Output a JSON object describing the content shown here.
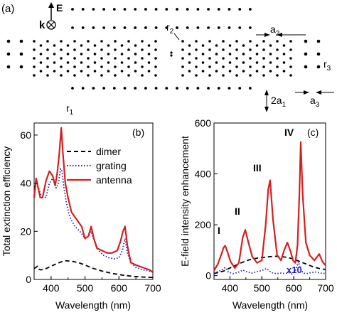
{
  "panel_a": {
    "label": "(a)",
    "E": "E",
    "k": "k",
    "r1": "r",
    "r1_sub": "1",
    "r2": "r",
    "r2_sub": "2",
    "r3": "r",
    "r3_sub": "3",
    "a2": "a",
    "a2_sub": "2",
    "a3": "a",
    "a3_sub": "3",
    "two_a1": "2a",
    "two_a1_sub": "1"
  },
  "colors": {
    "dimer": "#000000",
    "grating": "#1f1fb4",
    "antenna": "#d42020",
    "x10": "#1f1fb4"
  },
  "chart_data": [
    {
      "type": "line",
      "panel_label": "(b)",
      "xlabel": "Wavelength (nm)",
      "ylabel": "Total extinction efficiency",
      "xlim": [
        350,
        700
      ],
      "ylim": [
        0,
        65
      ],
      "xticks": [
        "400",
        "500",
        "600",
        "700"
      ],
      "yticks": [
        "0",
        "20",
        "40",
        "60"
      ],
      "legend": [
        "dimer",
        "grating",
        "antenna"
      ],
      "series": [
        {
          "name": "dimer",
          "x": [
            350,
            360,
            365,
            370,
            380,
            400,
            420,
            440,
            460,
            480,
            500,
            520,
            550,
            580,
            610,
            640,
            670,
            700
          ],
          "y": [
            4.5,
            5.5,
            4.2,
            4.0,
            4.2,
            5.5,
            6.8,
            7.8,
            7.6,
            7.0,
            6.0,
            4.8,
            3.5,
            2.5,
            1.8,
            1.3,
            1.0,
            0.8
          ]
        },
        {
          "name": "grating",
          "x": [
            350,
            355,
            362,
            370,
            385,
            395,
            405,
            415,
            422,
            428,
            432,
            438,
            445,
            455,
            470,
            485,
            500,
            510,
            518,
            525,
            540,
            555,
            570,
            585,
            600,
            610,
            618,
            625,
            635,
            650,
            670,
            690,
            700
          ],
          "y": [
            35,
            39,
            38.5,
            35,
            34,
            40,
            42,
            38,
            40,
            46,
            45,
            38,
            32,
            26,
            22,
            20,
            17,
            18,
            20,
            17,
            12,
            10,
            9,
            8.5,
            9,
            12,
            17,
            11,
            7,
            5,
            4,
            3.5,
            3
          ]
        },
        {
          "name": "antenna",
          "x": [
            350,
            356,
            362,
            368,
            375,
            385,
            395,
            405,
            412,
            418,
            424,
            430,
            435,
            442,
            450,
            460,
            475,
            490,
            500,
            510,
            518,
            526,
            535,
            550,
            565,
            580,
            595,
            605,
            612,
            618,
            625,
            635,
            650,
            670,
            690,
            700
          ],
          "y": [
            34,
            42,
            38,
            34,
            34,
            41,
            45,
            43,
            39,
            44,
            52,
            63,
            52,
            40,
            34,
            28,
            25,
            22,
            17,
            18,
            22,
            17,
            13,
            12,
            11,
            11,
            12,
            16,
            20,
            22,
            14,
            7,
            6,
            5,
            4,
            3
          ]
        }
      ]
    },
    {
      "type": "line",
      "panel_label": "(c)",
      "xlabel": "Wavelength (nm)",
      "ylabel": "E-field intensity enhancement",
      "xlim": [
        350,
        700
      ],
      "ylim": [
        -15,
        600
      ],
      "xticks": [
        "400",
        "500",
        "600",
        "700"
      ],
      "yticks": [
        "0",
        "200",
        "400",
        "600"
      ],
      "annotations": [
        "I",
        "II",
        "III",
        "IV",
        "x10"
      ],
      "series": [
        {
          "name": "dimer",
          "x": [
            350,
            380,
            400,
            430,
            460,
            490,
            520,
            540,
            560,
            580,
            600,
            620,
            640,
            660,
            680,
            700
          ],
          "y": [
            8,
            18,
            30,
            48,
            62,
            70,
            74,
            76,
            75,
            72,
            65,
            55,
            45,
            35,
            28,
            24
          ]
        },
        {
          "name": "grating",
          "x": [
            350,
            370,
            385,
            395,
            410,
            425,
            440,
            455,
            470,
            485,
            500,
            515,
            530,
            545,
            560,
            575,
            585,
            595,
            605,
            615,
            620,
            630,
            640,
            655,
            670,
            685,
            700
          ],
          "y": [
            10,
            20,
            32,
            14,
            8,
            12,
            22,
            14,
            10,
            16,
            20,
            28,
            12,
            8,
            10,
            8,
            12,
            6,
            20,
            55,
            30,
            10,
            8,
            12,
            14,
            10,
            8
          ]
        },
        {
          "name": "antenna",
          "x": [
            350,
            362,
            372,
            380,
            385,
            392,
            402,
            415,
            428,
            440,
            448,
            458,
            470,
            485,
            500,
            512,
            520,
            526,
            535,
            548,
            560,
            570,
            580,
            590,
            598,
            605,
            612,
            618,
            622,
            628,
            638,
            650,
            665,
            680,
            690,
            700
          ],
          "y": [
            20,
            45,
            80,
            110,
            118,
            95,
            55,
            30,
            50,
            150,
            180,
            130,
            75,
            50,
            60,
            200,
            340,
            375,
            220,
            80,
            60,
            100,
            130,
            95,
            60,
            50,
            120,
            330,
            525,
            320,
            130,
            80,
            60,
            85,
            55,
            40
          ]
        }
      ]
    }
  ]
}
